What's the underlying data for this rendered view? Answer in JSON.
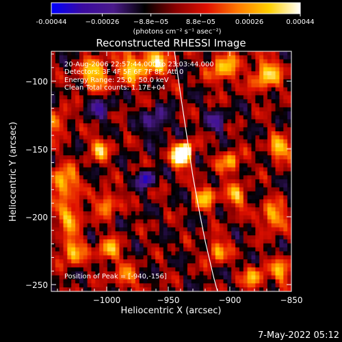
{
  "chart_data": {
    "type": "heatmap",
    "title": "Reconstructed RHESSI Image",
    "xlabel": "Heliocentric X (arcsec)",
    "ylabel": "Heliocentric Y (arcsec)",
    "xlim": [
      -1045,
      -850
    ],
    "ylim": [
      -255,
      -78
    ],
    "xticks": [
      -1000,
      -950,
      -900,
      -850
    ],
    "xtick_labels": [
      "−1000",
      "−950",
      "−900",
      "−850"
    ],
    "yticks": [
      -100,
      -150,
      -200,
      -250
    ],
    "ytick_labels": [
      "−100",
      "−150",
      "−200",
      "−250"
    ],
    "colorbar": {
      "range": [
        -0.00044,
        0.00044
      ],
      "ticks": [
        -0.00044,
        -0.00026,
        -8.8e-05,
        8.8e-05,
        0.00026,
        0.00044
      ],
      "tick_labels": [
        "-0.00044",
        "−0.00026",
        "−8.8e−05",
        "8.8e−05",
        "0.00026",
        "0.00044"
      ],
      "units": "(photons cm⁻² s⁻¹ asec⁻²)",
      "colormap": [
        "#0000ff",
        "#3a0aa0",
        "#4a1a8a",
        "#000000",
        "#8a0000",
        "#e01000",
        "#ff7a00",
        "#ffd000",
        "#ffffff"
      ]
    },
    "annotations": {
      "time": "20-Aug-2006 22:57:44.000 to 23:03:44.000",
      "detectors": "Detectors: 3F 4F 5F 6F 7F 8F, Att 0",
      "energy": "Energy Range: 25.0 - 50.0 keV",
      "clean": "Clean    Total counts: 1.17E+04",
      "peak": "Position of Peak = [-940,-156]"
    },
    "peak": {
      "x": -940,
      "y": -156
    },
    "limb_curve": [
      [
        -945,
        -78
      ],
      [
        -940,
        -110
      ],
      [
        -935,
        -140
      ],
      [
        -930,
        -170
      ],
      [
        -925,
        -195
      ],
      [
        -920,
        -218
      ],
      [
        -913,
        -245
      ],
      [
        -910,
        -255
      ]
    ],
    "hotspots": [
      {
        "x": -940,
        "y": -156,
        "sigma": 5,
        "amp": 1.0
      },
      {
        "x": -935,
        "y": -150,
        "sigma": 4,
        "amp": 0.6
      },
      {
        "x": -1035,
        "y": -175,
        "sigma": 8,
        "amp": 0.55
      },
      {
        "x": -1030,
        "y": -200,
        "sigma": 7,
        "amp": 0.5
      },
      {
        "x": -1028,
        "y": -225,
        "sigma": 7,
        "amp": 0.5
      },
      {
        "x": -1005,
        "y": -150,
        "sigma": 6,
        "amp": 0.45
      },
      {
        "x": -1000,
        "y": -190,
        "sigma": 6,
        "amp": 0.45
      },
      {
        "x": -998,
        "y": -225,
        "sigma": 6,
        "amp": 0.5
      },
      {
        "x": -1010,
        "y": -95,
        "sigma": 8,
        "amp": 0.55
      },
      {
        "x": -980,
        "y": -90,
        "sigma": 8,
        "amp": 0.5
      },
      {
        "x": -960,
        "y": -85,
        "sigma": 8,
        "amp": 0.5
      },
      {
        "x": -905,
        "y": -90,
        "sigma": 8,
        "amp": 0.5
      },
      {
        "x": -870,
        "y": -95,
        "sigma": 8,
        "amp": 0.55
      },
      {
        "x": -900,
        "y": -160,
        "sigma": 6,
        "amp": 0.45
      },
      {
        "x": -895,
        "y": -185,
        "sigma": 6,
        "amp": 0.45
      },
      {
        "x": -920,
        "y": -185,
        "sigma": 6,
        "amp": 0.5
      },
      {
        "x": -910,
        "y": -225,
        "sigma": 6,
        "amp": 0.45
      },
      {
        "x": -860,
        "y": -150,
        "sigma": 6,
        "amp": 0.55
      },
      {
        "x": -865,
        "y": -200,
        "sigma": 7,
        "amp": 0.5
      },
      {
        "x": -858,
        "y": -240,
        "sigma": 6,
        "amp": 0.45
      },
      {
        "x": -880,
        "y": -245,
        "sigma": 6,
        "amp": 0.45
      },
      {
        "x": -1040,
        "y": -130,
        "sigma": 6,
        "amp": 0.4
      },
      {
        "x": -985,
        "y": -245,
        "sigma": 6,
        "amp": 0.4
      }
    ],
    "coldspots": [
      {
        "x": -968,
        "y": -172,
        "sigma": 4,
        "amp": 0.7
      },
      {
        "x": -1005,
        "y": -120,
        "sigma": 6,
        "amp": 0.35
      },
      {
        "x": -960,
        "y": -130,
        "sigma": 7,
        "amp": 0.35
      },
      {
        "x": -910,
        "y": -130,
        "sigma": 6,
        "amp": 0.3
      }
    ]
  },
  "footer": {
    "timestamp": "7-May-2022 05:12"
  }
}
